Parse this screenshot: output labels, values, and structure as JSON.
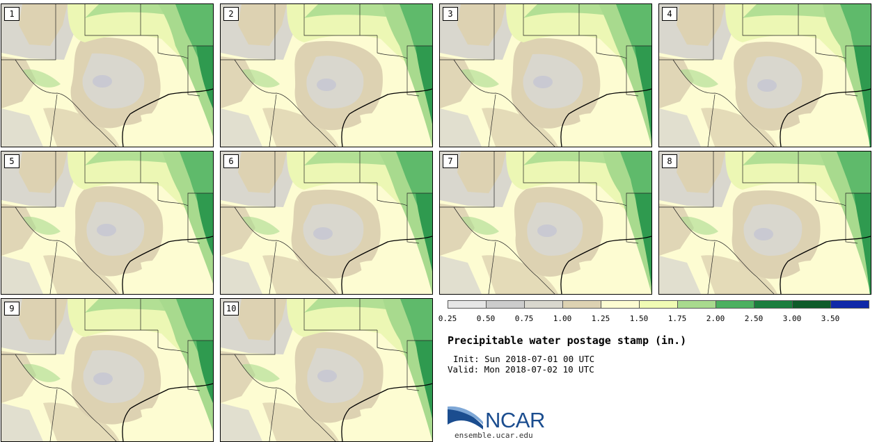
{
  "stamps": [
    {
      "label": "1"
    },
    {
      "label": "2"
    },
    {
      "label": "3"
    },
    {
      "label": "4"
    },
    {
      "label": "5"
    },
    {
      "label": "6"
    },
    {
      "label": "7"
    },
    {
      "label": "8"
    },
    {
      "label": "9"
    },
    {
      "label": "10"
    }
  ],
  "legend": {
    "ticks": [
      "0.25",
      "0.50",
      "0.75",
      "1.00",
      "1.25",
      "1.50",
      "1.75",
      "2.00",
      "2.50",
      "3.00",
      "3.50"
    ],
    "colors": [
      "#e6e6e6",
      "#cccccc",
      "#d9d7ce",
      "#ddd2b2",
      "#fdfcd2",
      "#f0fbb4",
      "#a8da8e",
      "#4cb060",
      "#1b7e3e",
      "#0f5b2a",
      "#1029a8"
    ]
  },
  "title": "Precipitable water postage stamp (in.)",
  "init": "Init: Sun 2018-07-01 00 UTC",
  "valid": "Valid: Mon 2018-07-02 10 UTC",
  "logo": {
    "word": "NCAR",
    "url": "ensemble.ucar.edu",
    "colors": {
      "blue": "#1b4d8f",
      "light": "#7ea7d6"
    }
  },
  "map_colors": {
    "base": "#fdfcd2",
    "tan": "#ddd2b2",
    "grey": "#d9d7ce",
    "grey_dark": "#c9c9d2",
    "light_green": "#ecf7b4",
    "green": "#a8da8e",
    "green_mid": "#5fba6b",
    "green_dark": "#2f9a4f"
  }
}
